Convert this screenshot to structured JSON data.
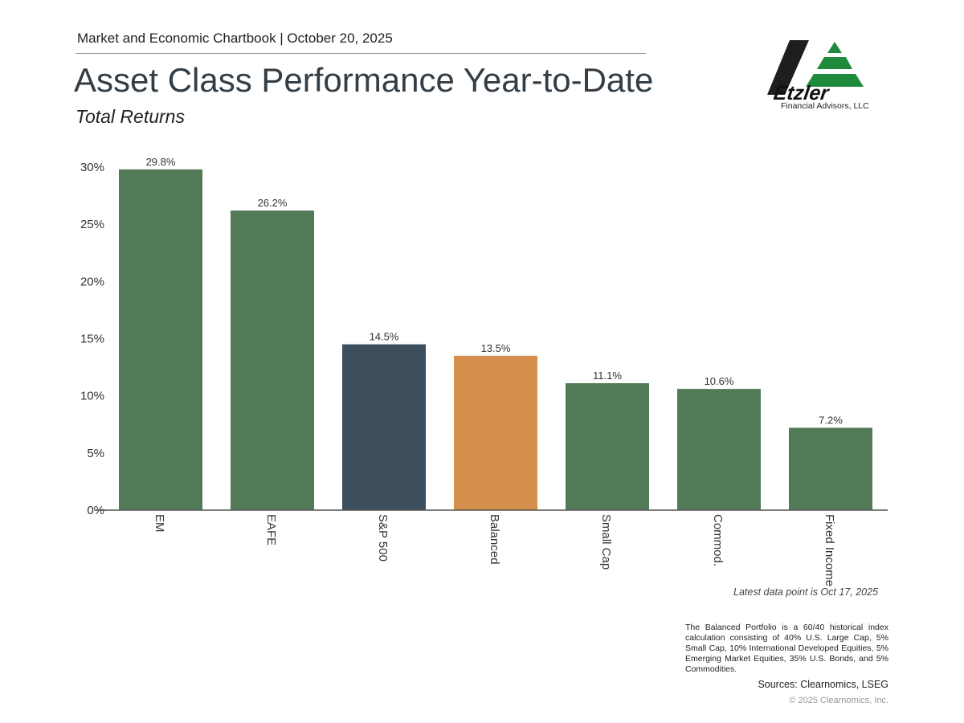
{
  "header": {
    "chartbook": "Market and Economic Chartbook | October 20, 2025"
  },
  "title": "Asset Class Performance Year-to-Date",
  "subtitle": "Total Returns",
  "logo": {
    "name": "Etzler",
    "tagline": "Financial Advisors, LLC"
  },
  "chart_data": {
    "type": "bar",
    "categories": [
      "EM",
      "EAFE",
      "S&P 500",
      "Balanced",
      "Small Cap",
      "Commod.",
      "Fixed Income"
    ],
    "values": [
      29.8,
      26.2,
      14.5,
      13.5,
      11.1,
      10.6,
      7.2
    ],
    "data_labels": [
      "29.8%",
      "26.2%",
      "14.5%",
      "13.5%",
      "11.1%",
      "10.6%",
      "7.2%"
    ],
    "colors": [
      "#527a57",
      "#527a57",
      "#3d4f5c",
      "#d48f4c",
      "#527a57",
      "#527a57",
      "#527a57"
    ],
    "ylim": [
      0,
      30
    ],
    "yticks": [
      0,
      5,
      10,
      15,
      20,
      25,
      30
    ],
    "ytick_labels": [
      "0%",
      "5%",
      "10%",
      "15%",
      "20%",
      "25%",
      "30%"
    ],
    "grid": false,
    "xlabel": "",
    "ylabel": ""
  },
  "footer": {
    "latest": "Latest data point is Oct 17, 2025",
    "note": "The Balanced Portfolio is a 60/40 historical index calculation consisting of 40% U.S. Large Cap, 5% Small Cap, 10% International Developed Equities, 5% Emerging Market Equities, 35% U.S. Bonds, and 5% Commodities.",
    "sources": "Sources: Clearnomics, LSEG",
    "copyright": "© 2025 Clearnomics, Inc."
  }
}
